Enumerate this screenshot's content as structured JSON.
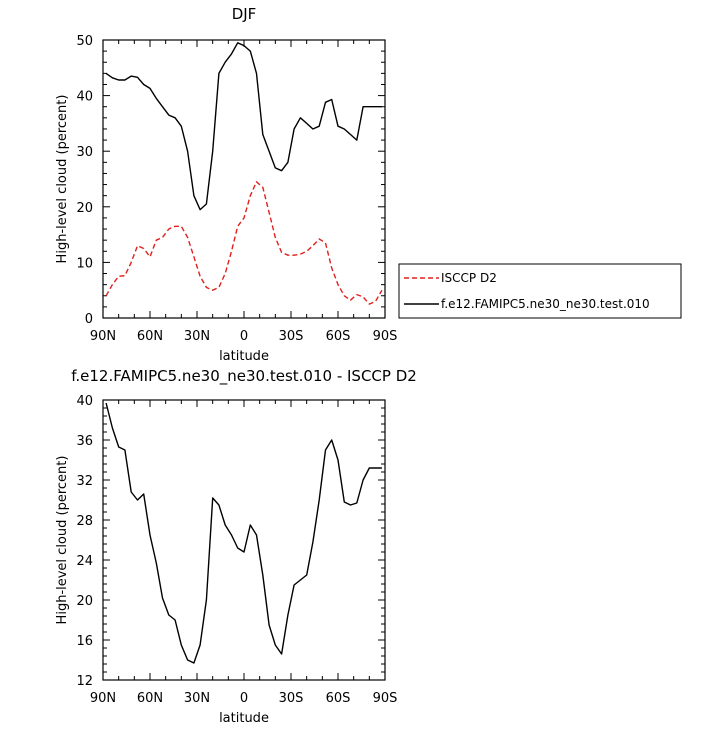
{
  "chart_data": [
    {
      "type": "line",
      "title": "DJF",
      "xlabel": "latitude",
      "ylabel": "High-level cloud (percent)",
      "xlim": [
        90,
        -90
      ],
      "ylim": [
        0,
        50
      ],
      "x_ticks": [
        90,
        60,
        30,
        0,
        -30,
        -60,
        -90
      ],
      "x_tick_labels": [
        "90N",
        "60N",
        "30N",
        "0",
        "30S",
        "60S",
        "90S"
      ],
      "y_ticks": [
        0,
        10,
        20,
        30,
        40,
        50
      ],
      "y_tick_labels": [
        "0",
        "10",
        "20",
        "30",
        "40",
        "50"
      ],
      "grid": false,
      "legend_position": "right",
      "series": [
        {
          "name": "ISCCP D2",
          "color": "#e0201c",
          "dash": true,
          "x": [
            88,
            84,
            80,
            76,
            72,
            68,
            64,
            60,
            56,
            52,
            48,
            44,
            40,
            36,
            32,
            28,
            24,
            20,
            16,
            12,
            8,
            4,
            0,
            -4,
            -8,
            -12,
            -16,
            -20,
            -24,
            -28,
            -32,
            -36,
            -40,
            -44,
            -48,
            -52,
            -56,
            -60,
            -64,
            -68,
            -72,
            -76,
            -80,
            -84,
            -88
          ],
          "values": [
            4,
            6,
            7.5,
            7.6,
            10,
            13,
            12.5,
            11,
            14,
            14.5,
            16,
            16.5,
            16.5,
            14.5,
            11,
            7.5,
            5.5,
            5,
            5.5,
            8,
            12,
            16.5,
            18,
            22,
            24.5,
            23.5,
            19,
            14.5,
            11.8,
            11.3,
            11.3,
            11.5,
            12,
            13,
            14.2,
            13.5,
            9,
            6,
            4,
            3.2,
            4.2,
            3.8,
            2.5,
            3,
            5
          ]
        },
        {
          "name": "f.e12.FAMIPC5.ne30_ne30.test.010",
          "color": "#000000",
          "dash": false,
          "x": [
            88,
            84,
            80,
            76,
            72,
            68,
            64,
            60,
            56,
            52,
            48,
            44,
            40,
            36,
            32,
            28,
            24,
            20,
            16,
            12,
            8,
            4,
            0,
            -4,
            -8,
            -12,
            -16,
            -20,
            -24,
            -28,
            -32,
            -36,
            -40,
            -44,
            -48,
            -52,
            -56,
            -60,
            -64,
            -68,
            -72,
            -76,
            -80,
            -84,
            -88
          ],
          "values": [
            44,
            43.2,
            42.8,
            42.8,
            43.5,
            43.3,
            42,
            41.3,
            39.5,
            38,
            36.5,
            36,
            34.5,
            30,
            22,
            19.5,
            20.5,
            30,
            44,
            46,
            47.5,
            49.5,
            49,
            48,
            44,
            33,
            30,
            27,
            26.5,
            28,
            34,
            36,
            35,
            34,
            34.5,
            38.8,
            39.3,
            34.5,
            34,
            33,
            32,
            38,
            38,
            38,
            38
          ]
        }
      ]
    },
    {
      "type": "line",
      "title": "f.e12.FAMIPC5.ne30_ne30.test.010 - ISCCP D2",
      "xlabel": "latitude",
      "ylabel": "High-level cloud (percent)",
      "xlim": [
        90,
        -90
      ],
      "ylim": [
        12,
        40
      ],
      "x_ticks": [
        90,
        60,
        30,
        0,
        -30,
        -60,
        -90
      ],
      "x_tick_labels": [
        "90N",
        "60N",
        "30N",
        "0",
        "30S",
        "60S",
        "90S"
      ],
      "y_ticks": [
        12,
        16,
        20,
        24,
        28,
        32,
        36,
        40
      ],
      "y_tick_labels": [
        "12",
        "16",
        "20",
        "24",
        "28",
        "32",
        "36",
        "40"
      ],
      "grid": false,
      "series": [
        {
          "name": "",
          "color": "#000000",
          "dash": false,
          "x": [
            88,
            84,
            80,
            76,
            72,
            68,
            64,
            60,
            56,
            52,
            48,
            44,
            40,
            36,
            32,
            28,
            24,
            20,
            16,
            12,
            8,
            4,
            0,
            -4,
            -8,
            -12,
            -16,
            -20,
            -24,
            -28,
            -32,
            -36,
            -40,
            -44,
            -48,
            -52,
            -56,
            -60,
            -64,
            -68,
            -72,
            -76,
            -80,
            -84,
            -88
          ],
          "values": [
            39.7,
            37.2,
            35.3,
            35,
            30.8,
            30,
            30.6,
            26.5,
            23.7,
            20.2,
            18.5,
            18,
            15.5,
            14,
            13.7,
            15.5,
            20,
            30.2,
            29.5,
            27.5,
            26.5,
            25.2,
            24.8,
            27.5,
            26.5,
            22.5,
            17.5,
            15.5,
            14.6,
            18.5,
            21.5,
            22,
            22.5,
            25.8,
            30,
            35,
            36,
            34,
            29.8,
            29.5,
            29.7,
            32,
            33.2,
            33.2,
            33.2
          ]
        }
      ]
    }
  ]
}
